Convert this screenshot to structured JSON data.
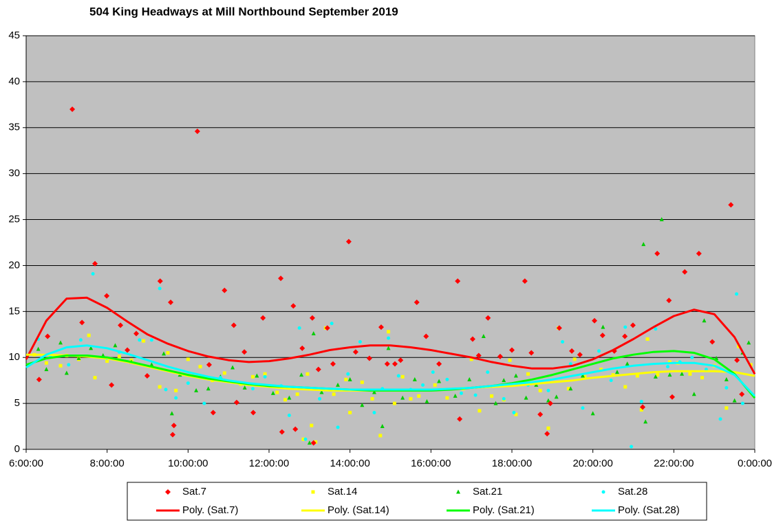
{
  "chart_data": {
    "type": "scatter",
    "title": "504 King  Headways  at Mill  Northbound  September  2019",
    "xlim": [
      6,
      24
    ],
    "ylim": [
      0,
      45
    ],
    "xticks": [
      {
        "value": 6,
        "label": "6:00:00"
      },
      {
        "value": 8,
        "label": "8:00:00"
      },
      {
        "value": 10,
        "label": "10:00:00"
      },
      {
        "value": 12,
        "label": "12:00:00"
      },
      {
        "value": 14,
        "label": "14:00:00"
      },
      {
        "value": 16,
        "label": "16:00:00"
      },
      {
        "value": 18,
        "label": "18:00:00"
      },
      {
        "value": 20,
        "label": "20:00:00"
      },
      {
        "value": 22,
        "label": "22:00:00"
      },
      {
        "value": 24,
        "label": "0:00:00"
      }
    ],
    "yticks": [
      0,
      5,
      10,
      15,
      20,
      25,
      30,
      35,
      40,
      45
    ],
    "grid": true,
    "plot_background": "#c0c0c0",
    "legend": "bottom",
    "series": [
      {
        "name": "Sat.7",
        "color": "#ff0000",
        "marker": "diamond",
        "x": [
          6.32,
          6.53,
          7.14,
          7.38,
          7.7,
          7.99,
          8.11,
          8.33,
          8.5,
          8.72,
          8.99,
          9.31,
          9.57,
          9.65,
          9.62,
          10.23,
          10.52,
          10.62,
          10.9,
          11.13,
          11.2,
          11.39,
          11.61,
          11.85,
          12.29,
          12.32,
          12.6,
          12.65,
          12.82,
          13.07,
          13.1,
          13.22,
          13.44,
          13.58,
          13.97,
          14.14,
          14.48,
          14.77,
          14.92,
          15.11,
          15.25,
          15.65,
          15.88,
          16.2,
          16.66,
          16.71,
          17.03,
          17.18,
          17.41,
          17.71,
          18.0,
          18.32,
          18.48,
          18.7,
          18.87,
          18.95,
          19.17,
          19.48,
          19.68,
          20.04,
          20.24,
          20.53,
          20.79,
          20.99,
          21.23,
          21.59,
          21.88,
          21.96,
          22.27,
          22.62,
          22.95,
          23.41,
          23.56,
          23.68
        ],
        "values": [
          7.6,
          12.3,
          37.0,
          13.8,
          20.2,
          16.7,
          7.0,
          13.5,
          10.8,
          12.6,
          8.0,
          18.3,
          16.0,
          2.6,
          1.6,
          34.6,
          9.2,
          4.0,
          17.3,
          13.5,
          5.1,
          10.6,
          4.0,
          14.3,
          18.6,
          1.9,
          15.6,
          2.2,
          11.0,
          14.3,
          0.7,
          8.7,
          13.2,
          9.3,
          22.6,
          10.6,
          9.9,
          13.3,
          9.3,
          9.3,
          9.7,
          16.0,
          12.3,
          9.3,
          18.3,
          3.3,
          12.0,
          10.2,
          14.3,
          10.1,
          10.8,
          18.3,
          10.5,
          3.8,
          1.7,
          5.0,
          13.2,
          10.7,
          10.3,
          14.0,
          12.4,
          10.7,
          12.3,
          13.5,
          4.6,
          21.3,
          16.2,
          5.7,
          19.3,
          21.3,
          11.7,
          26.6,
          9.7,
          6.0
        ]
      },
      {
        "name": "Sat.14",
        "color": "#ffff00",
        "marker": "square",
        "x": [
          6.2,
          6.5,
          6.85,
          7.0,
          7.3,
          7.55,
          7.7,
          8.0,
          8.3,
          8.6,
          8.9,
          9.3,
          9.5,
          9.7,
          10.0,
          10.3,
          10.6,
          10.9,
          11.3,
          11.6,
          11.9,
          12.2,
          12.4,
          12.7,
          12.85,
          12.95,
          13.05,
          13.15,
          13.4,
          13.6,
          13.9,
          14.0,
          14.3,
          14.55,
          14.75,
          14.95,
          15.1,
          15.3,
          15.5,
          15.7,
          16.1,
          16.4,
          16.8,
          17.0,
          17.2,
          17.5,
          17.8,
          17.95,
          18.1,
          18.4,
          18.7,
          18.9,
          19.15,
          19.4,
          19.55,
          19.8,
          20.2,
          20.5,
          20.8,
          21.1,
          21.2,
          21.35,
          21.6,
          21.9,
          22.1,
          22.4,
          22.7,
          23.0,
          23.3,
          23.6,
          23.9
        ],
        "values": [
          10.3,
          9.4,
          9.1,
          10.2,
          9.8,
          12.4,
          7.8,
          9.6,
          10.1,
          9.7,
          11.8,
          6.8,
          10.5,
          6.4,
          9.8,
          9.0,
          7.5,
          8.3,
          7.1,
          7.9,
          8.2,
          6.2,
          5.4,
          6.0,
          1.1,
          8.2,
          2.6,
          0.8,
          13.2,
          6.0,
          7.6,
          4.0,
          7.3,
          5.5,
          1.5,
          12.8,
          5.0,
          7.9,
          5.5,
          5.8,
          7.0,
          5.6,
          6.6,
          9.8,
          4.2,
          5.8,
          5.4,
          9.7,
          3.8,
          8.2,
          6.4,
          2.3,
          13.2,
          6.6,
          9.8,
          7.9,
          8.7,
          8.1,
          6.8,
          8.0,
          4.3,
          12.0,
          8.1,
          9.5,
          9.4,
          8.2,
          7.8,
          9.1,
          4.5,
          11.2,
          9.2
        ]
      },
      {
        "name": "Sat.21",
        "color": "#00cc00",
        "marker": "triangle",
        "x": [
          6.3,
          6.5,
          6.85,
          7.0,
          7.3,
          7.6,
          7.9,
          8.2,
          8.6,
          9.1,
          9.4,
          9.6,
          9.8,
          10.2,
          10.5,
          10.8,
          11.1,
          11.4,
          11.7,
          12.1,
          12.5,
          12.8,
          13.0,
          13.1,
          13.3,
          13.7,
          14.0,
          14.3,
          14.6,
          14.8,
          14.95,
          15.3,
          15.6,
          15.9,
          16.2,
          16.6,
          16.95,
          17.3,
          17.6,
          17.8,
          18.1,
          18.35,
          18.6,
          18.9,
          19.1,
          19.45,
          19.75,
          20.0,
          20.25,
          20.6,
          20.85,
          21.25,
          21.3,
          21.55,
          21.7,
          21.9,
          22.2,
          22.5,
          22.75,
          23.05,
          23.3,
          23.5,
          23.7,
          23.85
        ],
        "values": [
          10.9,
          8.7,
          11.6,
          8.3,
          9.9,
          11.0,
          10.2,
          11.3,
          9.5,
          9.2,
          10.4,
          3.9,
          8.1,
          6.4,
          6.6,
          7.9,
          8.9,
          6.7,
          8.0,
          6.1,
          5.6,
          8.1,
          0.7,
          12.6,
          6.2,
          7.0,
          7.6,
          4.8,
          6.2,
          2.5,
          11.0,
          5.6,
          7.6,
          5.2,
          7.4,
          5.8,
          7.6,
          12.3,
          5.0,
          7.5,
          8.0,
          5.6,
          7.0,
          5.3,
          5.7,
          6.6,
          8.0,
          3.9,
          13.3,
          8.4,
          9.3,
          22.3,
          3.0,
          7.9,
          25.0,
          8.1,
          8.2,
          6.0,
          14.0,
          9.9,
          7.6,
          5.3,
          10.5,
          11.6
        ]
      },
      {
        "name": "Sat.28",
        "color": "#00ffff",
        "marker": "circle",
        "x": [
          6.3,
          6.6,
          7.05,
          7.35,
          7.65,
          8.0,
          8.3,
          8.8,
          9.1,
          9.3,
          9.45,
          9.7,
          10.0,
          10.4,
          10.8,
          11.2,
          11.6,
          11.9,
          12.3,
          12.5,
          12.75,
          12.9,
          13.25,
          13.55,
          13.7,
          13.95,
          14.25,
          14.6,
          14.8,
          14.95,
          15.2,
          15.5,
          15.8,
          16.05,
          16.4,
          16.75,
          17.1,
          17.4,
          17.8,
          18.05,
          18.4,
          18.9,
          19.25,
          19.45,
          19.75,
          20.15,
          20.45,
          20.8,
          20.95,
          21.2,
          21.55,
          21.85,
          22.15,
          22.45,
          22.8,
          23.15,
          23.3,
          23.55,
          23.7
        ],
        "values": [
          12.0,
          10.1,
          9.2,
          11.9,
          19.1,
          9.9,
          10.6,
          11.9,
          11.9,
          17.5,
          6.5,
          5.6,
          7.2,
          5.0,
          7.8,
          7.3,
          6.6,
          7.9,
          6.9,
          3.7,
          13.2,
          1.1,
          5.5,
          13.7,
          2.4,
          8.2,
          11.7,
          4.0,
          6.6,
          12.1,
          8.0,
          6.5,
          7.0,
          8.4,
          7.6,
          6.1,
          5.9,
          8.4,
          5.5,
          4.0,
          7.0,
          6.4,
          11.7,
          9.3,
          4.5,
          10.7,
          7.5,
          13.3,
          0.3,
          5.2,
          13.1,
          9.0,
          9.5,
          10.0,
          8.7,
          3.3,
          6.7,
          16.9,
          5.0
        ]
      },
      {
        "name": "Poly. (Sat.7)",
        "color": "#ff0000",
        "marker": "line",
        "x": [
          6,
          6.5,
          7,
          7.5,
          8,
          8.5,
          9,
          9.5,
          10,
          10.5,
          11,
          11.5,
          12,
          12.5,
          13,
          13.5,
          14,
          14.5,
          15,
          15.5,
          16,
          16.5,
          17,
          17.5,
          18,
          18.5,
          19,
          19.5,
          20,
          20.5,
          21,
          21.5,
          22,
          22.5,
          23,
          23.5,
          24
        ],
        "values": [
          9.8,
          14.0,
          16.4,
          16.5,
          15.4,
          13.9,
          12.5,
          11.5,
          10.7,
          10.1,
          9.7,
          9.5,
          9.6,
          9.9,
          10.3,
          10.8,
          11.1,
          11.3,
          11.3,
          11.1,
          10.8,
          10.4,
          10.0,
          9.5,
          9.1,
          8.8,
          8.8,
          9.1,
          9.8,
          10.8,
          12.0,
          13.3,
          14.5,
          15.2,
          14.7,
          12.2,
          8.2
        ]
      },
      {
        "name": "Poly. (Sat.14)",
        "color": "#ffff00",
        "marker": "line",
        "x": [
          6,
          6.5,
          7,
          7.5,
          8,
          8.5,
          9,
          9.5,
          10,
          10.5,
          11,
          11.5,
          12,
          12.5,
          13,
          13.5,
          14,
          14.5,
          15,
          15.5,
          16,
          16.5,
          17,
          17.5,
          18,
          18.5,
          19,
          19.5,
          20,
          20.5,
          21,
          21.5,
          22,
          22.5,
          23,
          23.5,
          24
        ],
        "values": [
          10.3,
          10.3,
          10.2,
          10.1,
          9.9,
          9.5,
          9.0,
          8.5,
          8.0,
          7.6,
          7.3,
          7.0,
          6.8,
          6.6,
          6.5,
          6.4,
          6.4,
          6.4,
          6.4,
          6.4,
          6.5,
          6.6,
          6.7,
          6.8,
          6.9,
          7.1,
          7.3,
          7.5,
          7.8,
          8.0,
          8.2,
          8.4,
          8.5,
          8.5,
          8.5,
          8.4,
          8.0
        ]
      },
      {
        "name": "Poly. (Sat.21)",
        "color": "#00ff00",
        "marker": "line",
        "x": [
          6,
          6.5,
          7,
          7.5,
          8,
          8.5,
          9,
          9.5,
          10,
          10.5,
          11,
          11.5,
          12,
          12.5,
          13,
          13.5,
          14,
          14.5,
          15,
          15.5,
          16,
          16.5,
          17,
          17.5,
          18,
          18.5,
          19,
          19.5,
          20,
          20.5,
          21,
          21.5,
          22,
          22.5,
          23,
          23.5,
          24
        ],
        "values": [
          9.2,
          9.9,
          10.2,
          10.2,
          10.0,
          9.6,
          9.1,
          8.6,
          8.1,
          7.7,
          7.4,
          7.1,
          6.9,
          6.8,
          6.7,
          6.6,
          6.5,
          6.4,
          6.4,
          6.4,
          6.4,
          6.5,
          6.7,
          6.9,
          7.2,
          7.6,
          8.1,
          8.7,
          9.3,
          9.9,
          10.3,
          10.6,
          10.7,
          10.5,
          9.8,
          8.2,
          5.6
        ]
      },
      {
        "name": "Poly. (Sat.28)",
        "color": "#00ffff",
        "marker": "line",
        "x": [
          6,
          6.5,
          7,
          7.5,
          8,
          8.5,
          9,
          9.5,
          10,
          10.5,
          11,
          11.5,
          12,
          12.5,
          13,
          13.5,
          14,
          14.5,
          15,
          15.5,
          16,
          16.5,
          17,
          17.5,
          18,
          18.5,
          19,
          19.5,
          20,
          20.5,
          21,
          21.5,
          22,
          22.5,
          23,
          23.5,
          24
        ],
        "values": [
          8.9,
          10.3,
          11.1,
          11.3,
          11.0,
          10.4,
          9.7,
          9.0,
          8.4,
          7.9,
          7.5,
          7.2,
          7.0,
          6.8,
          6.7,
          6.6,
          6.5,
          6.5,
          6.5,
          6.5,
          6.5,
          6.6,
          6.7,
          6.9,
          7.1,
          7.3,
          7.6,
          8.0,
          8.4,
          8.8,
          9.1,
          9.3,
          9.4,
          9.4,
          9.1,
          8.1,
          5.8
        ]
      }
    ]
  }
}
